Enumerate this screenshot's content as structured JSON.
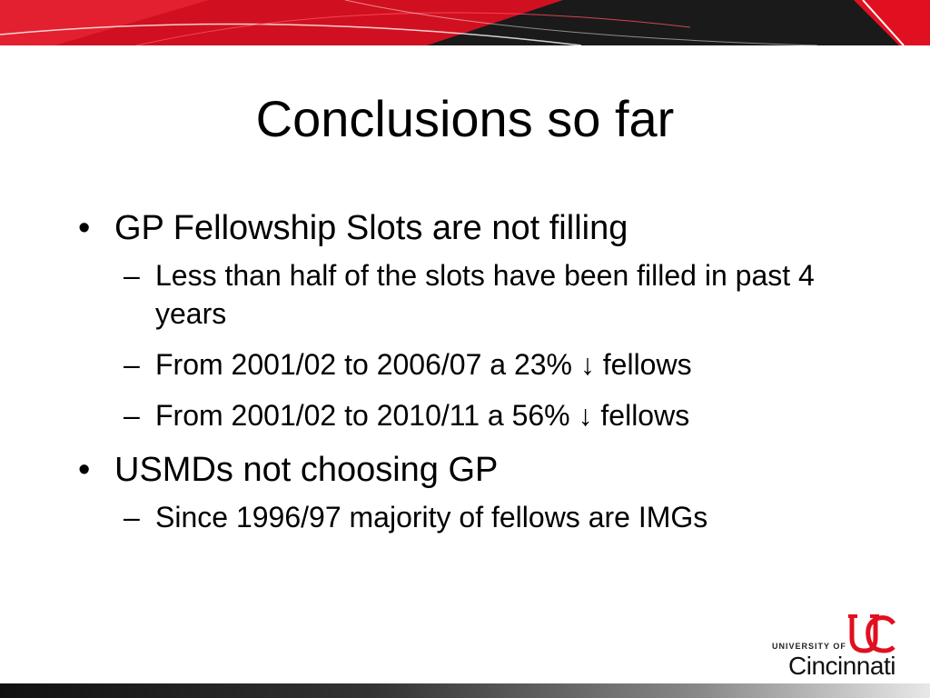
{
  "slide": {
    "title": "Conclusions so far",
    "bullets": [
      {
        "text": "GP Fellowship Slots are not filling",
        "sub": [
          "Less than half of the slots have been filled in past 4 years",
          "From 2001/02 to 2006/07 a 23% ↓ fellows",
          "From 2001/02 to 2010/11 a 56% ↓ fellows"
        ]
      },
      {
        "text": "USMDs not choosing GP",
        "sub": [
          "Since 1996/97 majority of fellows are IMGs"
        ]
      }
    ],
    "bullet_symbol": "•",
    "sub_symbol": "–"
  },
  "logo": {
    "line1": "UNIVERSITY OF",
    "line2": "Cincinnati"
  },
  "colors": {
    "brand_red": "#e01020",
    "header_dark": "#1a1a1a"
  }
}
